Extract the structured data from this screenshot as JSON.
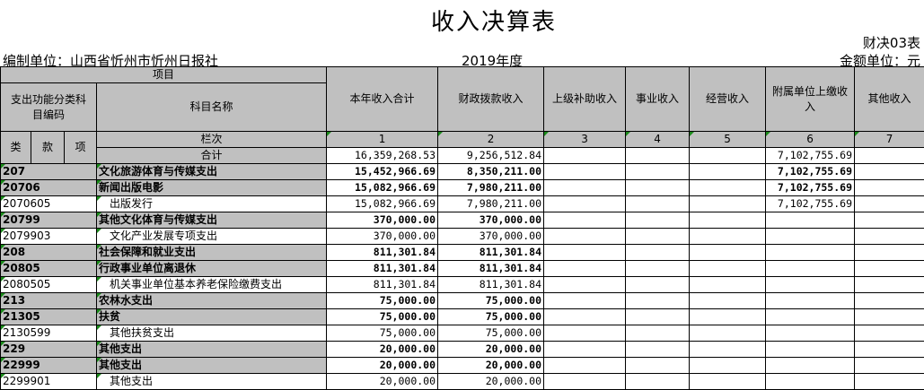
{
  "title": "收入决算表",
  "form_no": "财决03表",
  "unit": "编制单位：山西省忻州市忻州日报社",
  "year": "2019年度",
  "money_unit": "金额单位：元",
  "header": {
    "item": "项目",
    "code": "支出功能分类科目编码",
    "name": "科目名称",
    "lei": "类",
    "kuan": "款",
    "xiang": "项",
    "lanci": "栏次",
    "total_label": "合计",
    "columns": [
      "本年收入合计",
      "财政拨款收入",
      "上级补助收入",
      "事业收入",
      "经营收入",
      "附属单位上缴收入",
      "其他收入"
    ],
    "column_numbers": [
      "1",
      "2",
      "3",
      "4",
      "5",
      "6",
      "7"
    ]
  },
  "colors": {
    "header_bg": "#c0c0c0",
    "marker": "#1a8a1a"
  },
  "total": [
    "16,359,268.53",
    "9,256,512.84",
    "",
    "",
    "",
    "7,102,755.69",
    ""
  ],
  "rows": [
    {
      "code": "207",
      "name": "文化旅游体育与传媒支出",
      "bold": true,
      "values": [
        "15,452,966.69",
        "8,350,211.00",
        "",
        "",
        "",
        "7,102,755.69",
        ""
      ]
    },
    {
      "code": "20706",
      "name": "新闻出版电影",
      "bold": true,
      "values": [
        "15,082,966.69",
        "7,980,211.00",
        "",
        "",
        "",
        "7,102,755.69",
        ""
      ]
    },
    {
      "code": "2070605",
      "name": "出版发行",
      "bold": false,
      "values": [
        "15,082,966.69",
        "7,980,211.00",
        "",
        "",
        "",
        "7,102,755.69",
        ""
      ]
    },
    {
      "code": "20799",
      "name": "其他文化体育与传媒支出",
      "bold": true,
      "values": [
        "370,000.00",
        "370,000.00",
        "",
        "",
        "",
        "",
        ""
      ]
    },
    {
      "code": "2079903",
      "name": "文化产业发展专项支出",
      "bold": false,
      "values": [
        "370,000.00",
        "370,000.00",
        "",
        "",
        "",
        "",
        ""
      ]
    },
    {
      "code": "208",
      "name": "社会保障和就业支出",
      "bold": true,
      "values": [
        "811,301.84",
        "811,301.84",
        "",
        "",
        "",
        "",
        ""
      ]
    },
    {
      "code": "20805",
      "name": "行政事业单位离退休",
      "bold": true,
      "values": [
        "811,301.84",
        "811,301.84",
        "",
        "",
        "",
        "",
        ""
      ]
    },
    {
      "code": "2080505",
      "name": "机关事业单位基本养老保险缴费支出",
      "bold": false,
      "values": [
        "811,301.84",
        "811,301.84",
        "",
        "",
        "",
        "",
        ""
      ]
    },
    {
      "code": "213",
      "name": "农林水支出",
      "bold": true,
      "values": [
        "75,000.00",
        "75,000.00",
        "",
        "",
        "",
        "",
        ""
      ]
    },
    {
      "code": "21305",
      "name": "扶贫",
      "bold": true,
      "values": [
        "75,000.00",
        "75,000.00",
        "",
        "",
        "",
        "",
        ""
      ]
    },
    {
      "code": "2130599",
      "name": "其他扶贫支出",
      "bold": false,
      "values": [
        "75,000.00",
        "75,000.00",
        "",
        "",
        "",
        "",
        ""
      ]
    },
    {
      "code": "229",
      "name": "其他支出",
      "bold": true,
      "values": [
        "20,000.00",
        "20,000.00",
        "",
        "",
        "",
        "",
        ""
      ]
    },
    {
      "code": "22999",
      "name": "其他支出",
      "bold": true,
      "values": [
        "20,000.00",
        "20,000.00",
        "",
        "",
        "",
        "",
        ""
      ]
    },
    {
      "code": "2299901",
      "name": "其他支出",
      "bold": false,
      "values": [
        "20,000.00",
        "20,000.00",
        "",
        "",
        "",
        "",
        ""
      ]
    }
  ]
}
